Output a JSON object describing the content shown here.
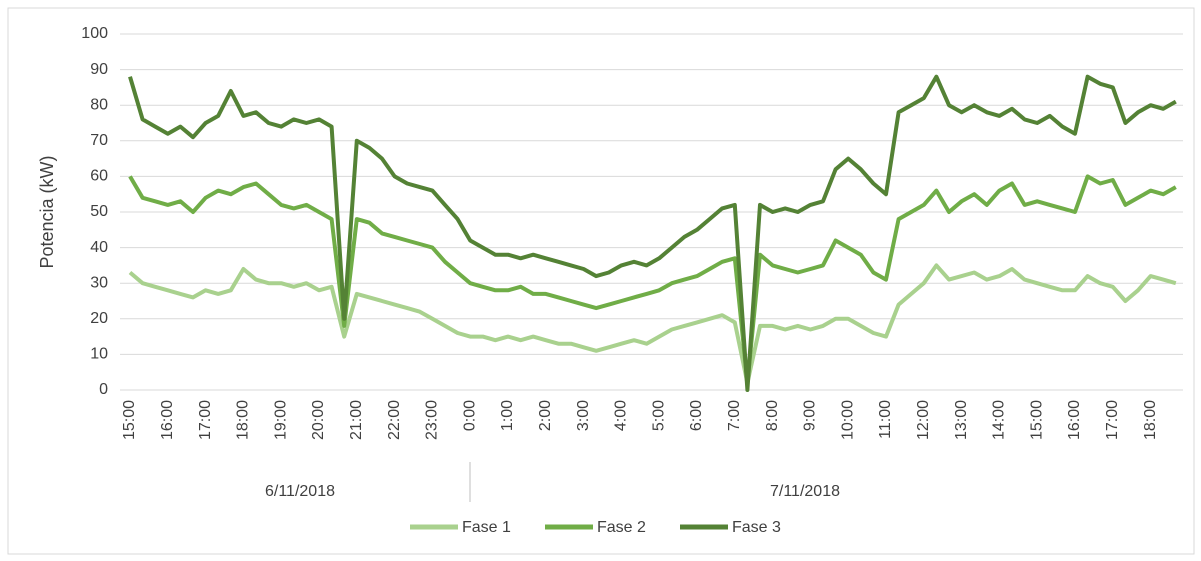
{
  "chart_data": {
    "type": "line",
    "y_label": "Potencia (kW)",
    "categories": [
      "15:00",
      null,
      null,
      "16:00",
      null,
      null,
      "17:00",
      null,
      null,
      "18:00",
      null,
      null,
      "19:00",
      null,
      null,
      "20:00",
      null,
      null,
      "21:00",
      null,
      null,
      "22:00",
      null,
      null,
      "23:00",
      null,
      null,
      "0:00",
      null,
      null,
      "1:00",
      null,
      null,
      "2:00",
      null,
      null,
      "3:00",
      null,
      null,
      "4:00",
      null,
      null,
      "5:00",
      null,
      null,
      "6:00",
      null,
      null,
      "7:00",
      null,
      null,
      "8:00",
      null,
      null,
      "9:00",
      null,
      null,
      "10:00",
      null,
      null,
      "11:00",
      null,
      null,
      "12:00",
      null,
      null,
      "13:00",
      null,
      null,
      "14:00",
      null,
      null,
      "15:00",
      null,
      null,
      "16:00",
      null,
      null,
      "17:00",
      null,
      null,
      "18:00",
      null,
      null
    ],
    "x_groups": [
      "6/11/2018",
      "7/11/2018"
    ],
    "series": [
      {
        "name": "Fase 1",
        "color": "#a9d18e",
        "values": [
          33,
          30,
          29,
          28,
          27,
          26,
          28,
          27,
          28,
          34,
          31,
          30,
          30,
          29,
          30,
          28,
          29,
          15,
          27,
          26,
          25,
          24,
          23,
          22,
          20,
          18,
          16,
          15,
          15,
          14,
          15,
          14,
          15,
          14,
          13,
          13,
          12,
          11,
          12,
          13,
          14,
          13,
          15,
          17,
          18,
          19,
          20,
          21,
          19,
          2,
          18,
          18,
          17,
          18,
          17,
          18,
          20,
          20,
          18,
          16,
          15,
          24,
          27,
          30,
          35,
          31,
          32,
          33,
          31,
          32,
          34,
          31,
          30,
          29,
          28,
          28,
          32,
          30,
          29,
          25,
          28,
          32,
          31,
          30
        ]
      },
      {
        "name": "Fase 2",
        "color": "#70ad47",
        "values": [
          60,
          54,
          53,
          52,
          53,
          50,
          54,
          56,
          55,
          57,
          58,
          55,
          52,
          51,
          52,
          50,
          48,
          18,
          48,
          47,
          44,
          43,
          42,
          41,
          40,
          36,
          33,
          30,
          29,
          28,
          28,
          29,
          27,
          27,
          26,
          25,
          24,
          23,
          24,
          25,
          26,
          27,
          28,
          30,
          31,
          32,
          34,
          36,
          37,
          2,
          38,
          35,
          34,
          33,
          34,
          35,
          42,
          40,
          38,
          33,
          31,
          48,
          50,
          52,
          56,
          50,
          53,
          55,
          52,
          56,
          58,
          52,
          53,
          52,
          51,
          50,
          60,
          58,
          59,
          52,
          54,
          56,
          55,
          57
        ]
      },
      {
        "name": "Fase 3",
        "color": "#548235",
        "values": [
          88,
          76,
          74,
          72,
          74,
          71,
          75,
          77,
          84,
          77,
          78,
          75,
          74,
          76,
          75,
          76,
          74,
          20,
          70,
          68,
          65,
          60,
          58,
          57,
          56,
          52,
          48,
          42,
          40,
          38,
          38,
          37,
          38,
          37,
          36,
          35,
          34,
          32,
          33,
          35,
          36,
          35,
          37,
          40,
          43,
          45,
          48,
          51,
          52,
          0,
          52,
          50,
          51,
          50,
          52,
          53,
          62,
          65,
          62,
          58,
          55,
          78,
          80,
          82,
          88,
          80,
          78,
          80,
          78,
          77,
          79,
          76,
          75,
          77,
          74,
          72,
          88,
          86,
          85,
          75,
          78,
          80,
          79,
          81
        ]
      }
    ],
    "ylim": [
      0,
      100
    ],
    "yticks": [
      0,
      10,
      20,
      30,
      40,
      50,
      60,
      70,
      80,
      90,
      100
    ],
    "grid": true,
    "legend": "bottom"
  }
}
